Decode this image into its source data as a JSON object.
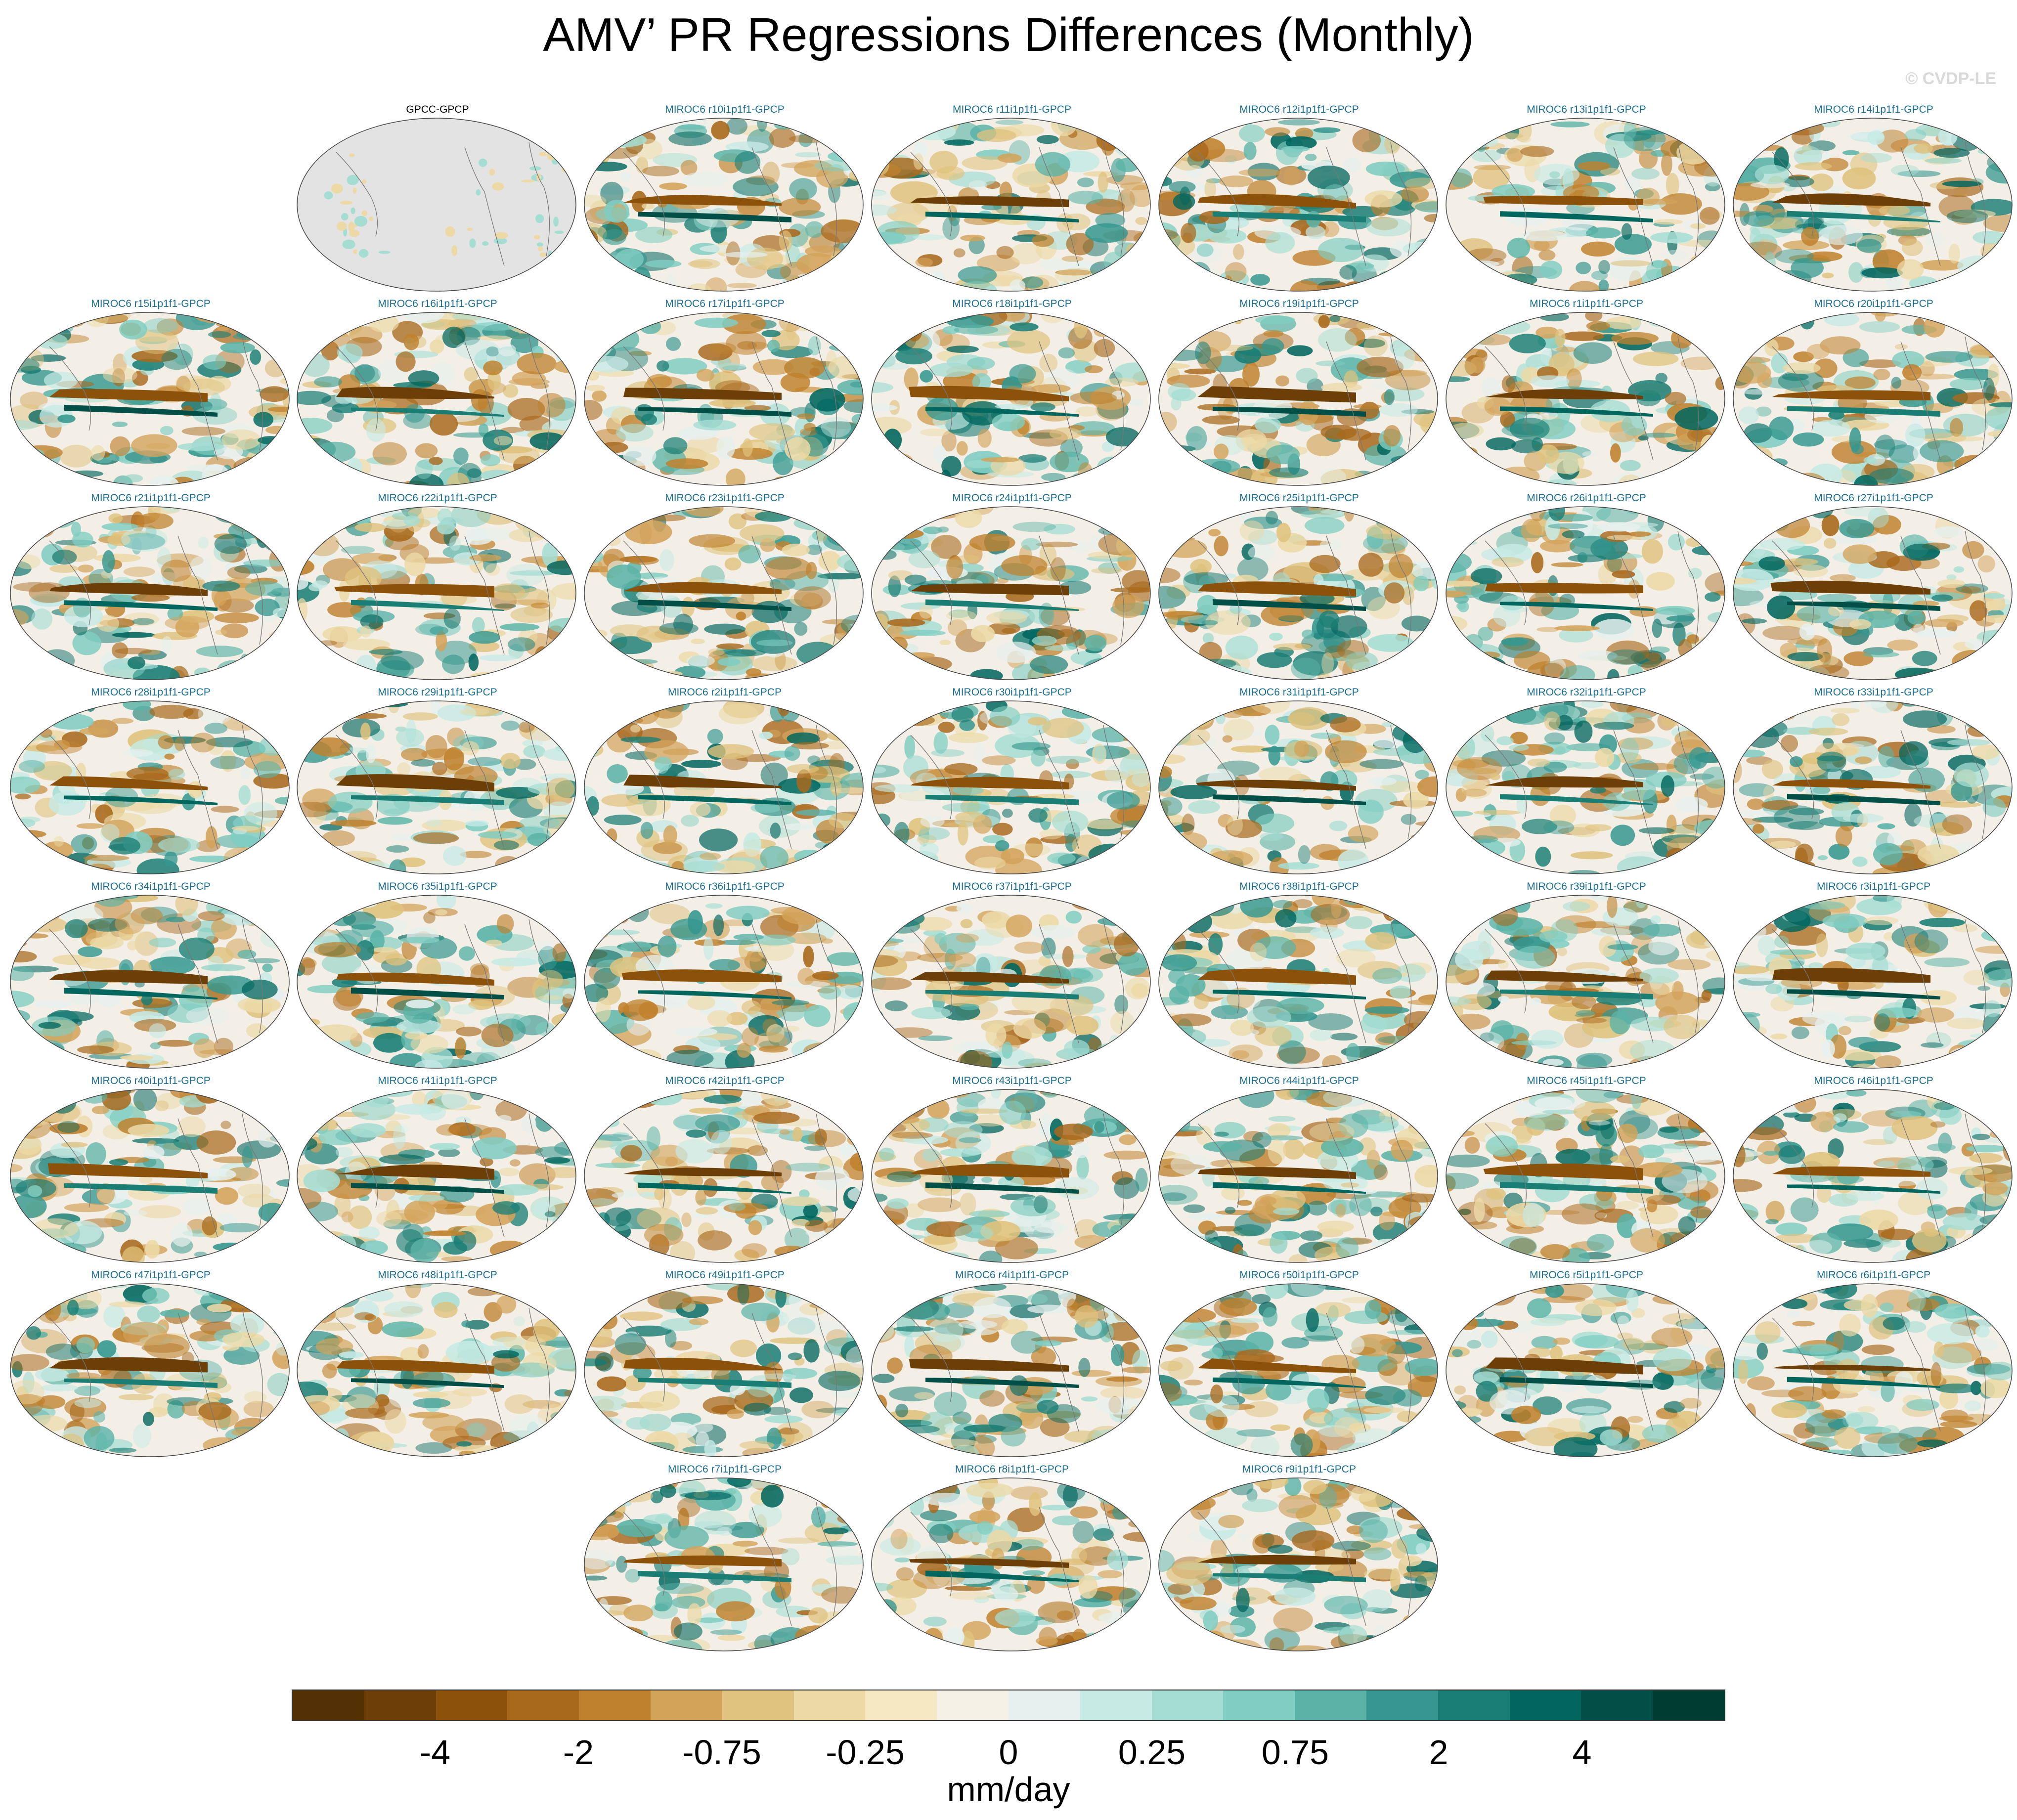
{
  "title": "AMV’ PR Regressions Differences (Monthly)",
  "watermark": "© CVDP-LE",
  "units": "mm/day",
  "colorbar": {
    "colors": [
      "#543005",
      "#6d3f08",
      "#8c510a",
      "#a8691d",
      "#bf812d",
      "#d3a35a",
      "#dfc27d",
      "#ecd9a6",
      "#f6e8c3",
      "#f5f0e6",
      "#e6f0ee",
      "#c7eae5",
      "#a5ddd3",
      "#80cdc1",
      "#5bb3a7",
      "#35978f",
      "#1b7e75",
      "#01665e",
      "#014f47",
      "#003c30"
    ],
    "tick_labels": [
      "-4",
      "-2",
      "-0.75",
      "-0.25",
      "0",
      "0.25",
      "0.75",
      "2",
      "4"
    ]
  },
  "panels": [
    {
      "label": "GPCC-GPCP",
      "type": "obs"
    },
    {
      "label": "MIROC6 r10i1p1f1-GPCP",
      "type": "model"
    },
    {
      "label": "MIROC6 r11i1p1f1-GPCP",
      "type": "model"
    },
    {
      "label": "MIROC6 r12i1p1f1-GPCP",
      "type": "model"
    },
    {
      "label": "MIROC6 r13i1p1f1-GPCP",
      "type": "model"
    },
    {
      "label": "MIROC6 r14i1p1f1-GPCP",
      "type": "model"
    },
    {
      "label": "MIROC6 r15i1p1f1-GPCP",
      "type": "model"
    },
    {
      "label": "MIROC6 r16i1p1f1-GPCP",
      "type": "model"
    },
    {
      "label": "MIROC6 r17i1p1f1-GPCP",
      "type": "model"
    },
    {
      "label": "MIROC6 r18i1p1f1-GPCP",
      "type": "model"
    },
    {
      "label": "MIROC6 r19i1p1f1-GPCP",
      "type": "model"
    },
    {
      "label": "MIROC6 r1i1p1f1-GPCP",
      "type": "model"
    },
    {
      "label": "MIROC6 r20i1p1f1-GPCP",
      "type": "model"
    },
    {
      "label": "MIROC6 r21i1p1f1-GPCP",
      "type": "model"
    },
    {
      "label": "MIROC6 r22i1p1f1-GPCP",
      "type": "model"
    },
    {
      "label": "MIROC6 r23i1p1f1-GPCP",
      "type": "model"
    },
    {
      "label": "MIROC6 r24i1p1f1-GPCP",
      "type": "model"
    },
    {
      "label": "MIROC6 r25i1p1f1-GPCP",
      "type": "model"
    },
    {
      "label": "MIROC6 r26i1p1f1-GPCP",
      "type": "model"
    },
    {
      "label": "MIROC6 r27i1p1f1-GPCP",
      "type": "model"
    },
    {
      "label": "MIROC6 r28i1p1f1-GPCP",
      "type": "model"
    },
    {
      "label": "MIROC6 r29i1p1f1-GPCP",
      "type": "model"
    },
    {
      "label": "MIROC6 r2i1p1f1-GPCP",
      "type": "model"
    },
    {
      "label": "MIROC6 r30i1p1f1-GPCP",
      "type": "model"
    },
    {
      "label": "MIROC6 r31i1p1f1-GPCP",
      "type": "model"
    },
    {
      "label": "MIROC6 r32i1p1f1-GPCP",
      "type": "model"
    },
    {
      "label": "MIROC6 r33i1p1f1-GPCP",
      "type": "model"
    },
    {
      "label": "MIROC6 r34i1p1f1-GPCP",
      "type": "model"
    },
    {
      "label": "MIROC6 r35i1p1f1-GPCP",
      "type": "model"
    },
    {
      "label": "MIROC6 r36i1p1f1-GPCP",
      "type": "model"
    },
    {
      "label": "MIROC6 r37i1p1f1-GPCP",
      "type": "model"
    },
    {
      "label": "MIROC6 r38i1p1f1-GPCP",
      "type": "model"
    },
    {
      "label": "MIROC6 r39i1p1f1-GPCP",
      "type": "model"
    },
    {
      "label": "MIROC6 r3i1p1f1-GPCP",
      "type": "model"
    },
    {
      "label": "MIROC6 r40i1p1f1-GPCP",
      "type": "model"
    },
    {
      "label": "MIROC6 r41i1p1f1-GPCP",
      "type": "model"
    },
    {
      "label": "MIROC6 r42i1p1f1-GPCP",
      "type": "model"
    },
    {
      "label": "MIROC6 r43i1p1f1-GPCP",
      "type": "model"
    },
    {
      "label": "MIROC6 r44i1p1f1-GPCP",
      "type": "model"
    },
    {
      "label": "MIROC6 r45i1p1f1-GPCP",
      "type": "model"
    },
    {
      "label": "MIROC6 r46i1p1f1-GPCP",
      "type": "model"
    },
    {
      "label": "MIROC6 r47i1p1f1-GPCP",
      "type": "model"
    },
    {
      "label": "MIROC6 r48i1p1f1-GPCP",
      "type": "model"
    },
    {
      "label": "MIROC6 r49i1p1f1-GPCP",
      "type": "model"
    },
    {
      "label": "MIROC6 r4i1p1f1-GPCP",
      "type": "model"
    },
    {
      "label": "MIROC6 r50i1p1f1-GPCP",
      "type": "model"
    },
    {
      "label": "MIROC6 r5i1p1f1-GPCP",
      "type": "model"
    },
    {
      "label": "MIROC6 r6i1p1f1-GPCP",
      "type": "model"
    },
    {
      "label": "MIROC6 r7i1p1f1-GPCP",
      "type": "model"
    },
    {
      "label": "MIROC6 r8i1p1f1-GPCP",
      "type": "model"
    },
    {
      "label": "MIROC6 r9i1p1f1-GPCP",
      "type": "model"
    }
  ]
}
